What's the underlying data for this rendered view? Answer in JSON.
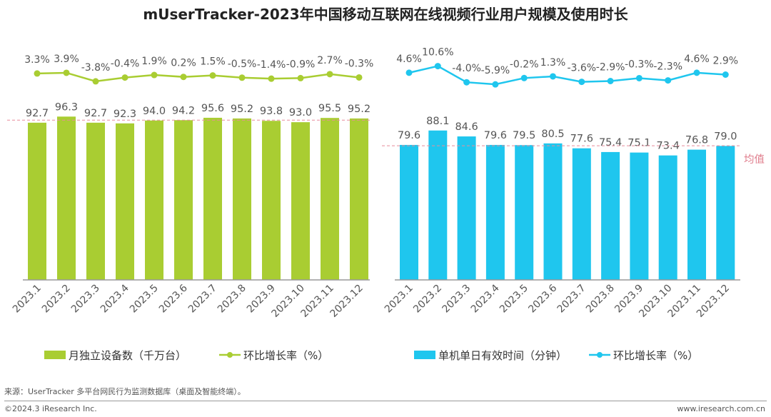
{
  "title": "mUserTracker-2023年中国移动互联网在线视频行业用户规模及使用时长",
  "chart_data": [
    {
      "type": "bar+line",
      "categories": [
        "2023.1",
        "2023.2",
        "2023.3",
        "2023.4",
        "2023.5",
        "2023.6",
        "2023.7",
        "2023.8",
        "2023.9",
        "2023.10",
        "2023.11",
        "2023.12"
      ],
      "bar_series": {
        "name": "月独立设备数（千万台）",
        "values": [
          92.7,
          96.3,
          92.7,
          92.3,
          94.0,
          94.2,
          95.6,
          95.2,
          93.8,
          93.0,
          95.5,
          95.2
        ],
        "color": "#a9cd32"
      },
      "line_series": {
        "name": "环比增长率（%）",
        "values": [
          3.3,
          3.9,
          -3.8,
          -0.4,
          1.9,
          0.2,
          1.5,
          -0.5,
          -1.4,
          -0.9,
          2.7,
          -0.3
        ],
        "labels": [
          "3.3%",
          "3.9%",
          "-3.8%",
          "-0.4%",
          "1.9%",
          "0.2%",
          "1.5%",
          "-0.5%",
          "-1.4%",
          "-0.9%",
          "2.7%",
          "-0.3%"
        ],
        "color": "#a9cd32"
      },
      "mean_line": {
        "color": "#e88c9a",
        "style": "dashed"
      },
      "legend_placement": "bottom",
      "grid": false
    },
    {
      "type": "bar+line",
      "categories": [
        "2023.1",
        "2023.2",
        "2023.3",
        "2023.4",
        "2023.5",
        "2023.6",
        "2023.7",
        "2023.8",
        "2023.9",
        "2023.10",
        "2023.11",
        "2023.12"
      ],
      "bar_series": {
        "name": "单机单日有效时间（分钟）",
        "values": [
          79.6,
          88.1,
          84.6,
          79.6,
          79.5,
          80.5,
          77.6,
          75.4,
          75.1,
          73.4,
          76.8,
          79.0
        ],
        "color": "#1fc6ee"
      },
      "line_series": {
        "name": "环比增长率（%）",
        "values": [
          4.6,
          10.6,
          -4.0,
          -5.9,
          -0.2,
          1.3,
          -3.6,
          -2.9,
          -0.3,
          -2.3,
          4.6,
          2.9
        ],
        "labels": [
          "4.6%",
          "10.6%",
          "-4.0%",
          "-5.9%",
          "-0.2%",
          "1.3%",
          "-3.6%",
          "-2.9%",
          "-0.3%",
          "-2.3%",
          "4.6%",
          "2.9%"
        ],
        "color": "#1fc6ee"
      },
      "mean_line": {
        "color": "#e88c9a",
        "style": "dashed",
        "label": "均值"
      },
      "legend_placement": "bottom",
      "grid": false
    }
  ],
  "footer": {
    "source": "来源：UserTracker 多平台网民行为监测数据库（桌面及智能终端）。",
    "copyright": "©2024.3 iResearch Inc.",
    "website": "www.iresearch.com.cn"
  }
}
